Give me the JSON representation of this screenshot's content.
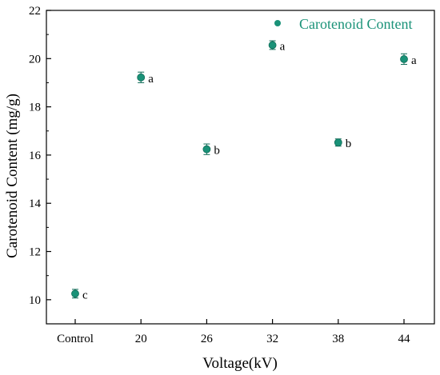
{
  "chart_data": {
    "type": "scatter",
    "categories": [
      "Control",
      "20",
      "26",
      "32",
      "38",
      "44"
    ],
    "series": [
      {
        "name": "Carotenoid Content",
        "values": [
          10.25,
          19.22,
          16.24,
          20.56,
          16.52,
          19.98
        ],
        "errors": [
          0.18,
          0.22,
          0.22,
          0.18,
          0.15,
          0.22
        ],
        "labels": [
          "c",
          "a",
          "b",
          "a",
          "b",
          "a"
        ]
      }
    ],
    "xlabel": "Voltage(kV)",
    "ylabel": "Carotenoid Content (mg/g)",
    "ylim": [
      9,
      22
    ],
    "yticks": [
      "10",
      "12",
      "14",
      "16",
      "18",
      "20",
      "22"
    ],
    "legend": "top-right",
    "grid": false
  },
  "colors": {
    "marker": "#1a9278",
    "marker_edge": "#0f6b57",
    "legend_text": "#1a9278",
    "axis": "#000000"
  }
}
